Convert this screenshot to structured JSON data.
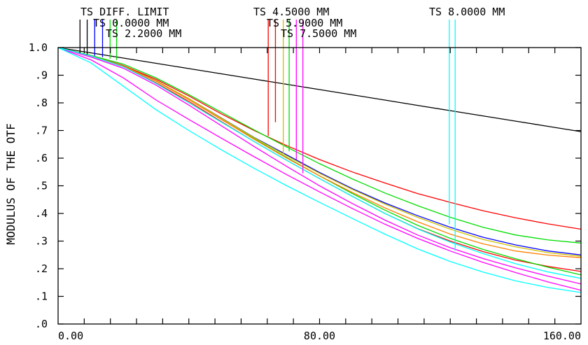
{
  "chart_data": {
    "type": "line",
    "ylabel": "MODULUS OF THE OTF",
    "xlabel": "",
    "xlim": [
      0,
      160
    ],
    "ylim": [
      0,
      1
    ],
    "x_tick_labels": [
      {
        "value": 0,
        "label": "0.00"
      },
      {
        "value": 80,
        "label": "80.00"
      },
      {
        "value": 160,
        "label": "160.00"
      }
    ],
    "x_minor_ticks": [
      8,
      16,
      24,
      32,
      40,
      48,
      56,
      64,
      72,
      80,
      88,
      96,
      104,
      112,
      120,
      128,
      136,
      144,
      152
    ],
    "y_tick_labels": [
      {
        "value": 0.0,
        "label": ".0"
      },
      {
        "value": 0.1,
        "label": ".1"
      },
      {
        "value": 0.2,
        "label": ".2"
      },
      {
        "value": 0.3,
        "label": ".3"
      },
      {
        "value": 0.4,
        "label": ".4"
      },
      {
        "value": 0.5,
        "label": ".5"
      },
      {
        "value": 0.6,
        "label": ".6"
      },
      {
        "value": 0.7,
        "label": ".7"
      },
      {
        "value": 0.8,
        "label": ".8"
      },
      {
        "value": 0.9,
        "label": ".9"
      },
      {
        "value": 1.0,
        "label": "1.0"
      }
    ],
    "legend_labels": [
      {
        "text": "TS DIFF. LIMIT"
      },
      {
        "text": "TS 0.0000 MM"
      },
      {
        "text": "TS 2.2000 MM"
      },
      {
        "text": "TS 4.5000 MM"
      },
      {
        "text": "TS 5.9000 MM"
      },
      {
        "text": "TS 7.5000 MM"
      },
      {
        "text": "TS 8.0000 MM"
      }
    ],
    "x": [
      0,
      10,
      20,
      30,
      40,
      50,
      60,
      70,
      80,
      90,
      100,
      110,
      120,
      130,
      140,
      150,
      160
    ],
    "series": [
      {
        "color": "#000000",
        "values": [
          1.0,
          0.981,
          0.962,
          0.943,
          0.924,
          0.905,
          0.886,
          0.867,
          0.848,
          0.829,
          0.81,
          0.791,
          0.772,
          0.753,
          0.734,
          0.715,
          0.696
        ]
      },
      {
        "color": "#0000ff",
        "values": [
          1.0,
          0.97,
          0.935,
          0.88,
          0.815,
          0.745,
          0.675,
          0.612,
          0.548,
          0.49,
          0.438,
          0.392,
          0.35,
          0.314,
          0.286,
          0.264,
          0.25
        ]
      },
      {
        "color": "#ff0000",
        "values": [
          1.0,
          0.97,
          0.935,
          0.885,
          0.825,
          0.76,
          0.7,
          0.645,
          0.595,
          0.55,
          0.51,
          0.472,
          0.44,
          0.41,
          0.384,
          0.362,
          0.343
        ]
      },
      {
        "color": "#ff0000",
        "values": [
          1.0,
          0.97,
          0.93,
          0.872,
          0.805,
          0.732,
          0.66,
          0.592,
          0.526,
          0.462,
          0.4,
          0.345,
          0.3,
          0.262,
          0.231,
          0.208,
          0.19
        ]
      },
      {
        "color": "#00dd00",
        "values": [
          1.0,
          0.972,
          0.94,
          0.89,
          0.83,
          0.766,
          0.702,
          0.64,
          0.58,
          0.525,
          0.474,
          0.428,
          0.386,
          0.35,
          0.322,
          0.304,
          0.293
        ]
      },
      {
        "color": "#00dd00",
        "values": [
          1.0,
          0.97,
          0.933,
          0.878,
          0.812,
          0.74,
          0.67,
          0.602,
          0.536,
          0.472,
          0.412,
          0.357,
          0.31,
          0.27,
          0.236,
          0.205,
          0.178
        ]
      },
      {
        "color": "#d0c000",
        "values": [
          1.0,
          0.97,
          0.933,
          0.88,
          0.815,
          0.744,
          0.674,
          0.608,
          0.545,
          0.487,
          0.434,
          0.386,
          0.343,
          0.306,
          0.279,
          0.258,
          0.245
        ]
      },
      {
        "color": "#ff8000",
        "values": [
          1.0,
          0.97,
          0.933,
          0.878,
          0.812,
          0.74,
          0.668,
          0.6,
          0.536,
          0.476,
          0.42,
          0.37,
          0.325,
          0.29,
          0.264,
          0.249,
          0.24
        ]
      },
      {
        "color": "#ff00ff",
        "values": [
          1.0,
          0.966,
          0.925,
          0.864,
          0.792,
          0.717,
          0.642,
          0.57,
          0.5,
          0.436,
          0.376,
          0.322,
          0.276,
          0.237,
          0.203,
          0.173,
          0.145
        ]
      },
      {
        "color": "#ff00ff",
        "values": [
          1.0,
          0.956,
          0.89,
          0.81,
          0.74,
          0.672,
          0.605,
          0.54,
          0.478,
          0.418,
          0.361,
          0.31,
          0.264,
          0.223,
          0.186,
          0.152,
          0.122
        ]
      },
      {
        "color": "#00ffff",
        "values": [
          1.0,
          0.97,
          0.93,
          0.87,
          0.8,
          0.73,
          0.66,
          0.592,
          0.526,
          0.462,
          0.4,
          0.344,
          0.296,
          0.255,
          0.218,
          0.188,
          0.165
        ]
      },
      {
        "color": "#00ffff",
        "values": [
          1.0,
          0.945,
          0.86,
          0.775,
          0.7,
          0.63,
          0.563,
          0.5,
          0.44,
          0.382,
          0.325,
          0.272,
          0.226,
          0.188,
          0.156,
          0.132,
          0.114
        ]
      }
    ],
    "legend_markers": [
      {
        "x": 6.7,
        "y": 0.98,
        "color": "#000000"
      },
      {
        "x": 8.9,
        "y": 0.975,
        "color": "#000000"
      },
      {
        "x": 11.2,
        "y": 0.97,
        "color": "#0000ff"
      },
      {
        "x": 13.6,
        "y": 0.965,
        "color": "#0000ff"
      },
      {
        "x": 15.9,
        "y": 0.96,
        "color": "#00dd00"
      },
      {
        "x": 17.9,
        "y": 0.955,
        "color": "#00dd00"
      },
      {
        "x": 64.3,
        "y": 0.68,
        "color": "#ff0000"
      },
      {
        "x": 66.5,
        "y": 0.73,
        "color": "#ff0000"
      },
      {
        "x": 68.9,
        "y": 0.615,
        "color": "#d0c000"
      },
      {
        "x": 70.7,
        "y": 0.625,
        "color": "#00dd00"
      },
      {
        "x": 72.9,
        "y": 0.595,
        "color": "#ff00ff"
      },
      {
        "x": 74.9,
        "y": 0.545,
        "color": "#ff00ff"
      },
      {
        "x": 119.7,
        "y": 0.36,
        "color": "#00ffff"
      },
      {
        "x": 121.5,
        "y": 0.265,
        "color": "#00ffff"
      }
    ]
  }
}
